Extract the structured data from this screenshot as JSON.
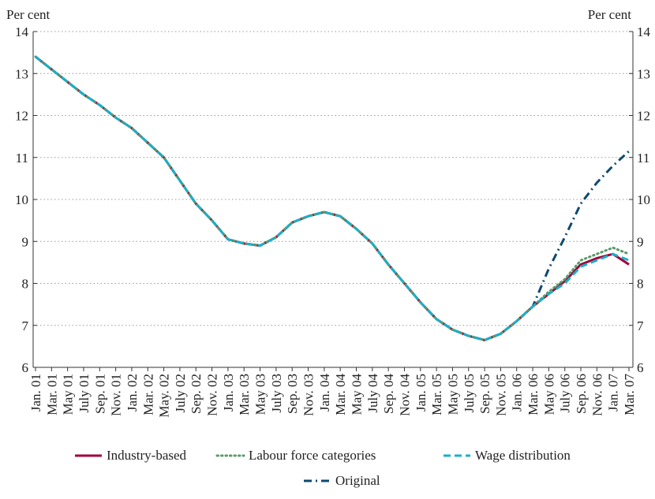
{
  "chart_data": {
    "type": "line",
    "y_label_left": "Per cent",
    "y_label_right": "Per cent",
    "categories": [
      "Jan. 01",
      "Mar. 01",
      "May 01",
      "July 01",
      "Sep. 01",
      "Nov. 01",
      "Jan. 02",
      "Mar. 02",
      "May. 02",
      "July 02",
      "Sep. 02",
      "Nov. 02",
      "Jan. 03",
      "Mar. 03",
      "May 03",
      "July 03",
      "Sep. 03",
      "Nov. 03",
      "Jan. 04",
      "Mar. 04",
      "May 04",
      "July 04",
      "Sep. 04",
      "Nov. 04",
      "Jan. 05",
      "Mar. 05",
      "May 05",
      "July 05",
      "Sep. 05",
      "Nov. 05",
      "Jan. 06",
      "Mar. 06",
      "May 06",
      "July 06",
      "Sep. 06",
      "Nov. 06",
      "Jan. 07",
      "Mar. 07"
    ],
    "series": [
      {
        "name": "Original",
        "color": "#0e4a6e",
        "dash": "dashdot",
        "values": [
          13.4,
          13.1,
          12.8,
          12.5,
          12.25,
          11.95,
          11.7,
          11.35,
          11.0,
          10.45,
          9.9,
          9.5,
          9.05,
          8.95,
          8.9,
          9.1,
          9.45,
          9.6,
          9.7,
          9.6,
          9.3,
          8.95,
          8.45,
          8.0,
          7.55,
          7.15,
          6.9,
          6.75,
          6.65,
          6.8,
          7.1,
          7.45,
          8.35,
          9.1,
          9.9,
          10.4,
          10.8,
          11.15
        ]
      },
      {
        "name": "Industry-based",
        "color": "#a0003a",
        "dash": "solid",
        "values": [
          13.4,
          13.1,
          12.8,
          12.5,
          12.25,
          11.95,
          11.7,
          11.35,
          11.0,
          10.45,
          9.9,
          9.5,
          9.05,
          8.95,
          8.9,
          9.1,
          9.45,
          9.6,
          9.7,
          9.6,
          9.3,
          8.95,
          8.45,
          8.0,
          7.55,
          7.15,
          6.9,
          6.75,
          6.65,
          6.8,
          7.1,
          7.45,
          7.75,
          8.05,
          8.45,
          8.6,
          8.7,
          8.45
        ]
      },
      {
        "name": "Labour force categories",
        "color": "#5a9a6a",
        "dash": "dotted",
        "values": [
          13.4,
          13.1,
          12.8,
          12.5,
          12.25,
          11.95,
          11.7,
          11.35,
          11.0,
          10.45,
          9.9,
          9.5,
          9.05,
          8.95,
          8.9,
          9.1,
          9.45,
          9.6,
          9.7,
          9.6,
          9.3,
          8.95,
          8.45,
          8.0,
          7.55,
          7.15,
          6.9,
          6.75,
          6.65,
          6.8,
          7.1,
          7.45,
          7.8,
          8.1,
          8.55,
          8.7,
          8.85,
          8.7
        ]
      },
      {
        "name": "Wage distribution",
        "color": "#1ab0c8",
        "dash": "dashed",
        "values": [
          13.4,
          13.1,
          12.8,
          12.5,
          12.25,
          11.95,
          11.7,
          11.35,
          11.0,
          10.45,
          9.9,
          9.5,
          9.05,
          8.95,
          8.9,
          9.1,
          9.45,
          9.6,
          9.7,
          9.6,
          9.3,
          8.95,
          8.45,
          8.0,
          7.55,
          7.15,
          6.9,
          6.75,
          6.65,
          6.8,
          7.1,
          7.45,
          7.75,
          8.0,
          8.4,
          8.55,
          8.7,
          8.55
        ]
      }
    ],
    "ylim": [
      6,
      14
    ],
    "yticks": [
      6,
      7,
      8,
      9,
      10,
      11,
      12,
      13,
      14
    ],
    "grid": true
  }
}
